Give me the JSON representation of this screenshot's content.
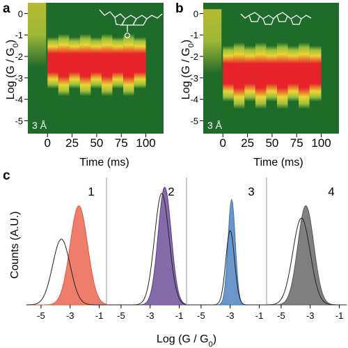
{
  "panel_a": {
    "letter": "a",
    "distance_label": "3 Å",
    "ylabel_main": "Log (G / G",
    "ylabel_sub": "0",
    "ylabel_tail": ")",
    "xlabel": "Time (ms)"
  },
  "panel_b": {
    "letter": "b",
    "distance_label": "3 Å",
    "ylabel_main": "Log (G / G",
    "ylabel_sub": "0",
    "ylabel_tail": ")",
    "xlabel": "Time (ms)"
  },
  "panel_c": {
    "letter": "c",
    "ylabel": "Counts (A.U.)",
    "xlabel_main": "Log (G / G",
    "xlabel_sub": "0",
    "xlabel_tail": ")"
  },
  "colors": {
    "background_heatmap": "#1f6b2a",
    "heatmap_high": "#e8242a",
    "heatmap_mid": "#e9e233",
    "panel1_fill": "#e8533a",
    "panel2_fill": "#5b3b8f",
    "panel3_fill": "#3a73b8",
    "panel4_fill": "#555555"
  },
  "chart_data": [
    {
      "type": "heatmap",
      "panel": "a",
      "x_ticks": [
        "0",
        "25",
        "50",
        "75",
        "100"
      ],
      "y_ticks": [
        "0",
        "-1",
        "-2",
        "-3",
        "-4",
        "-5"
      ],
      "xlim": [
        -20,
        118
      ],
      "ylim": [
        -5.6,
        0.5
      ],
      "pre_trace_log_g": 0.0,
      "trace_center_log_g": -2.3,
      "trace_width_log_g": 2.4,
      "trace_start_ms": 0,
      "trace_end_ms": 100,
      "segment_boundaries_ms": [
        0,
        11,
        22,
        33,
        44,
        55,
        66,
        77,
        88,
        100
      ]
    },
    {
      "type": "heatmap",
      "panel": "b",
      "x_ticks": [
        "0",
        "25",
        "50",
        "75",
        "100"
      ],
      "y_ticks": [
        "0",
        "-1",
        "-2",
        "-3",
        "-4",
        "-5"
      ],
      "xlim": [
        -20,
        118
      ],
      "ylim": [
        -5.6,
        0.5
      ],
      "pre_trace_log_g": -0.3,
      "trace_center_log_g": -2.8,
      "trace_width_log_g": 2.6,
      "trace_start_ms": 0,
      "trace_end_ms": 100,
      "segment_boundaries_ms": [
        0,
        11,
        22,
        33,
        44,
        55,
        66,
        77,
        88,
        100
      ]
    },
    {
      "type": "area",
      "panel": "c",
      "subpanels": [
        {
          "label": "1",
          "x_ticks": [
            "-5",
            "-3",
            "-1"
          ],
          "xlim": [
            -6,
            -0.5
          ],
          "peaks": [
            {
              "center": -2.4,
              "height": 0.8,
              "width": 0.6
            }
          ],
          "outline_peak": {
            "center": -3.6,
            "height": 0.53,
            "width": 0.6
          }
        },
        {
          "label": "2",
          "x_ticks": [
            "-5",
            "-3",
            "-1"
          ],
          "xlim": [
            -6,
            -0.5
          ],
          "peaks": [
            {
              "center": -2.0,
              "height": 0.95,
              "width": 0.45
            }
          ],
          "outline_peak": {
            "center": -2.2,
            "height": 0.9,
            "width": 0.5
          }
        },
        {
          "label": "3",
          "x_ticks": [
            "-5",
            "-3",
            "-1"
          ],
          "xlim": [
            -6,
            -0.5
          ],
          "peaks": [
            {
              "center": -2.9,
              "height": 0.85,
              "width": 0.25
            }
          ],
          "outline_peak": {
            "center": -3.0,
            "height": 0.6,
            "width": 0.3
          }
        },
        {
          "label": "4",
          "x_ticks": [
            "-5",
            "-3",
            "-1"
          ],
          "xlim": [
            -6,
            -0.5
          ],
          "peaks": [
            {
              "center": -3.3,
              "height": 0.8,
              "width": 0.55
            }
          ],
          "outline_peak": {
            "center": -3.6,
            "height": 0.7,
            "width": 0.6
          }
        }
      ]
    }
  ]
}
